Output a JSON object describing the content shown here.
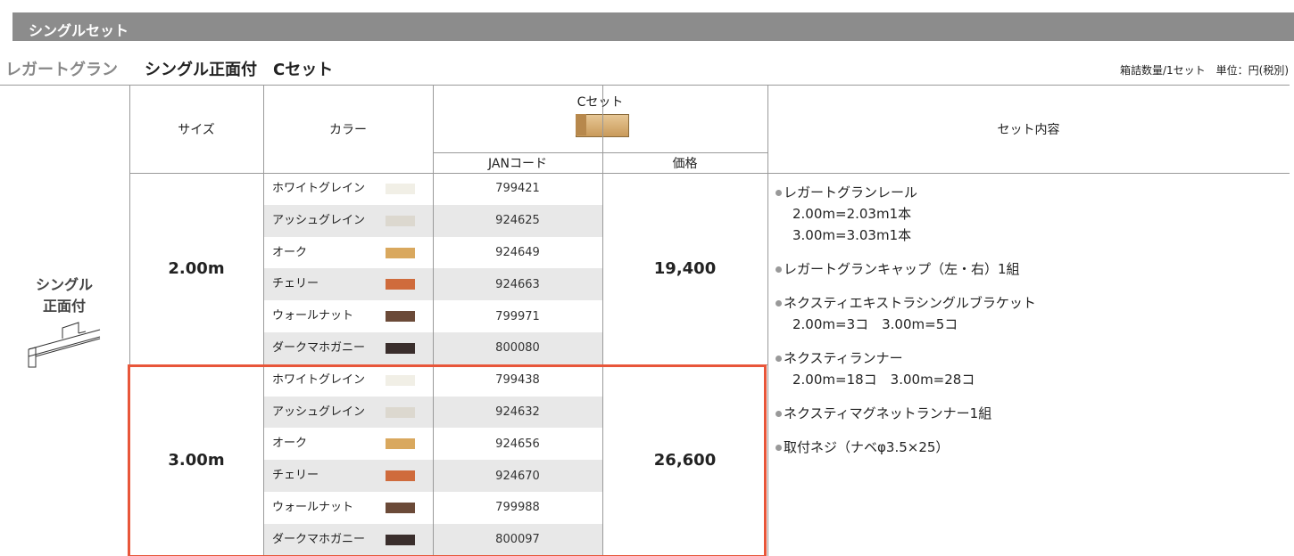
{
  "section_title": "シングルセット",
  "header": {
    "brand": "レガートグラン",
    "title": "シングル正面付　Cセット",
    "note": "箱詰数量/1セット　単位：円(税別)"
  },
  "side_label": [
    "シングル",
    "正面付"
  ],
  "table": {
    "columns": {
      "size": "サイズ",
      "color": "カラー",
      "set": "Cセット",
      "jan": "JANコード",
      "price": "価格",
      "contents": "セット内容"
    },
    "groups": [
      {
        "size": "2.00m",
        "price": "19,400",
        "rows": [
          {
            "color": "ホワイトグレイン",
            "swatch": "#f1efe6",
            "jan": "799421"
          },
          {
            "color": "アッシュグレイン",
            "swatch": "#dcd8cf",
            "jan": "924625"
          },
          {
            "color": "オーク",
            "swatch": "#d9a85e",
            "jan": "924649"
          },
          {
            "color": "チェリー",
            "swatch": "#cf6b3c",
            "jan": "924663"
          },
          {
            "color": "ウォールナット",
            "swatch": "#6b4a38",
            "jan": "799971"
          },
          {
            "color": "ダークマホガニー",
            "swatch": "#3a2e2c",
            "jan": "800080"
          }
        ]
      },
      {
        "size": "3.00m",
        "price": "26,600",
        "rows": [
          {
            "color": "ホワイトグレイン",
            "swatch": "#f1efe6",
            "jan": "799438"
          },
          {
            "color": "アッシュグレイン",
            "swatch": "#dcd8cf",
            "jan": "924632"
          },
          {
            "color": "オーク",
            "swatch": "#d9a85e",
            "jan": "924656"
          },
          {
            "color": "チェリー",
            "swatch": "#cf6b3c",
            "jan": "924670"
          },
          {
            "color": "ウォールナット",
            "swatch": "#6b4a38",
            "jan": "799988"
          },
          {
            "color": "ダークマホガニー",
            "swatch": "#3a2e2c",
            "jan": "800097"
          }
        ]
      }
    ],
    "contents": [
      {
        "item": "レガートグランレール",
        "details": [
          "2.00m=2.03m1本",
          "3.00m=3.03m1本"
        ]
      },
      {
        "item": "レガートグランキャップ（左・右）1組",
        "details": []
      },
      {
        "item": "ネクスティエキストラシングルブラケット",
        "details": [
          "2.00m=3コ　3.00m=5コ"
        ]
      },
      {
        "item": "ネクスティランナー",
        "details": [
          "2.00m=18コ　3.00m=28コ"
        ]
      },
      {
        "item": "ネクスティマグネットランナー1組",
        "details": []
      },
      {
        "item": "取付ネジ（ナベφ3.5×25）",
        "details": []
      }
    ]
  }
}
